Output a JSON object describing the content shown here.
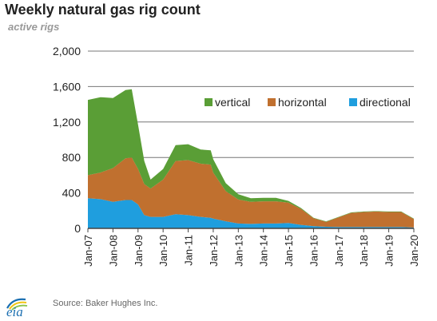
{
  "chart_data": {
    "type": "area",
    "stacked": true,
    "title": "Weekly natural gas rig count",
    "ylabel": "active rigs",
    "ylim": [
      0,
      2000
    ],
    "yticks": [
      0,
      400,
      800,
      1200,
      1600,
      2000
    ],
    "ytick_labels": [
      "0",
      "400",
      "800",
      "1,200",
      "1,600",
      "2,000"
    ],
    "xlim": [
      2007,
      2020
    ],
    "xticks": [
      2007,
      2008,
      2009,
      2010,
      2011,
      2012,
      2013,
      2014,
      2015,
      2016,
      2017,
      2018,
      2019,
      2020
    ],
    "xtick_labels": [
      "Jan-07",
      "Jan-08",
      "Jan-09",
      "Jan-10",
      "Jan-11",
      "Jan-12",
      "Jan-13",
      "Jan-14",
      "Jan-15",
      "Jan-16",
      "Jan-17",
      "Jan-18",
      "Jan-19",
      "Jan-20"
    ],
    "grid": true,
    "legend_position": "top-right",
    "x": [
      2007.0,
      2007.5,
      2008.0,
      2008.5,
      2008.75,
      2009.0,
      2009.25,
      2009.5,
      2010.0,
      2010.5,
      2011.0,
      2011.5,
      2011.9,
      2012.0,
      2012.5,
      2013.0,
      2013.5,
      2014.0,
      2014.5,
      2015.0,
      2015.5,
      2016.0,
      2016.5,
      2017.0,
      2017.5,
      2018.0,
      2018.5,
      2019.0,
      2019.5,
      2020.0
    ],
    "series": [
      {
        "name": "directional",
        "color": "#1f9ede",
        "values": [
          340,
          330,
          300,
          320,
          320,
          270,
          150,
          130,
          130,
          160,
          150,
          130,
          120,
          110,
          80,
          55,
          50,
          55,
          55,
          60,
          40,
          25,
          18,
          15,
          15,
          15,
          15,
          15,
          15,
          10
        ]
      },
      {
        "name": "horizontal",
        "color": "#c0702f",
        "values": [
          260,
          300,
          380,
          470,
          480,
          400,
          350,
          320,
          420,
          600,
          620,
          600,
          600,
          520,
          340,
          270,
          250,
          250,
          250,
          230,
          180,
          90,
          55,
          110,
          160,
          170,
          175,
          170,
          170,
          95
        ]
      },
      {
        "name": "vertical",
        "color": "#5a9e36",
        "values": [
          850,
          850,
          790,
          770,
          770,
          500,
          260,
          100,
          120,
          180,
          180,
          160,
          160,
          150,
          90,
          60,
          40,
          40,
          40,
          20,
          10,
          5,
          5,
          5,
          5,
          5,
          5,
          5,
          5,
          5
        ]
      }
    ]
  },
  "source": "Source: Baker Hughes Inc.",
  "logo_text": "eia",
  "colors": {
    "grid": "#777777",
    "title": "#222222",
    "subtitle": "#999999",
    "logo_blue": "#1b6fb1",
    "logo_green": "#8bc34a",
    "logo_yellow": "#f1c40f"
  }
}
